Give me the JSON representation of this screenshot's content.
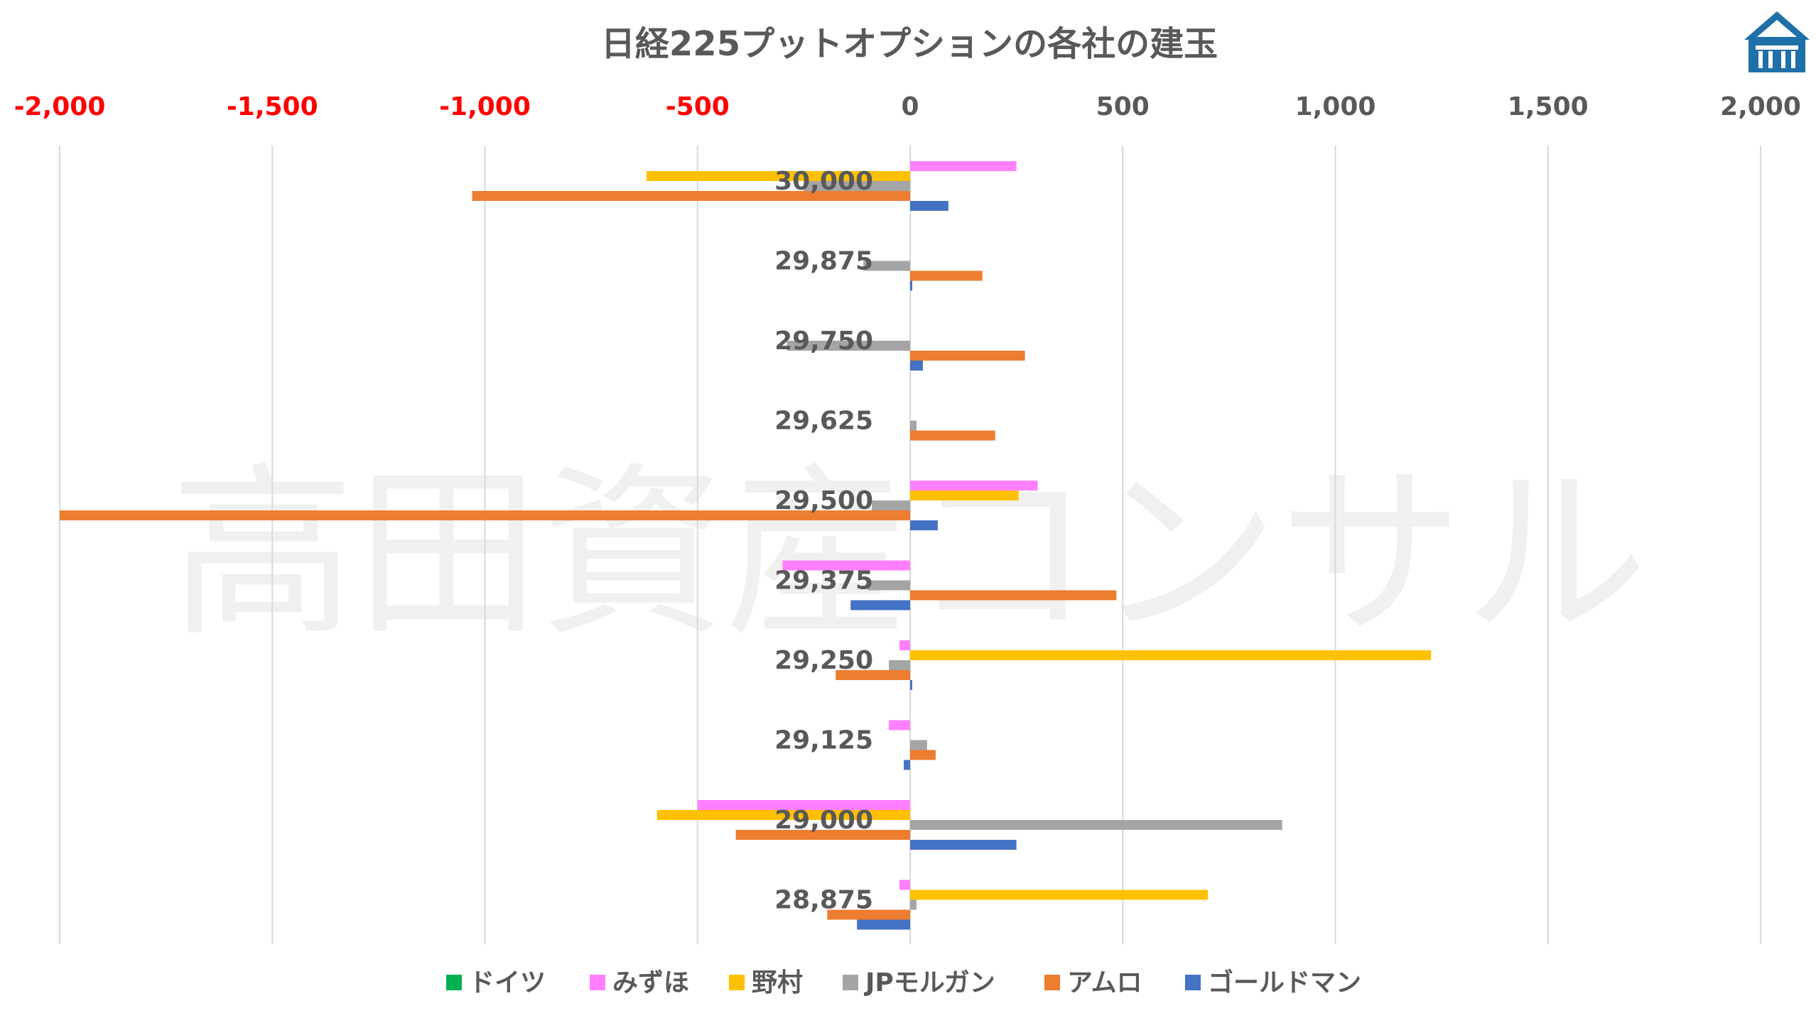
{
  "chart_data": {
    "type": "bar",
    "orientation": "horizontal",
    "title": "日経225プットオプションの各社の建玉",
    "xlim": [
      -2000,
      2000
    ],
    "x_ticks": [
      -2000,
      -1500,
      -1000,
      -500,
      0,
      500,
      1000,
      1500,
      2000
    ],
    "x_tick_labels": [
      "-2,000",
      "-1,500",
      "-1,000",
      "-500",
      "0",
      "500",
      "1,000",
      "1,500",
      "2,000"
    ],
    "negative_tick_color": "#FF0000",
    "positive_tick_color": "#595959",
    "grid": true,
    "legend_position": "bottom",
    "categories": [
      "30,000",
      "29,875",
      "29,750",
      "29,625",
      "29,500",
      "29,375",
      "29,250",
      "29,125",
      "29,000",
      "28,875"
    ],
    "series": [
      {
        "name": "ドイツ",
        "color": "#00B050",
        "values": [
          0,
          0,
          0,
          0,
          0,
          0,
          0,
          0,
          0,
          0
        ]
      },
      {
        "name": "みずほ",
        "color": "#FF80FF",
        "values": [
          250,
          0,
          0,
          0,
          300,
          -300,
          -25,
          -50,
          -500,
          -25
        ]
      },
      {
        "name": "野村",
        "color": "#FFC000",
        "values": [
          -620,
          0,
          0,
          0,
          255,
          0,
          1225,
          0,
          -595,
          700
        ]
      },
      {
        "name": "JPモルガン",
        "color": "#A5A5A5",
        "values": [
          -250,
          -110,
          -290,
          15,
          -90,
          -100,
          -50,
          40,
          875,
          15
        ]
      },
      {
        "name": "アムロ",
        "color": "#ED7D31",
        "values": [
          -1030,
          170,
          270,
          200,
          -2000,
          485,
          -175,
          60,
          -410,
          -195
        ]
      },
      {
        "name": "ゴールドマン",
        "color": "#4472C4",
        "values": [
          90,
          5,
          30,
          0,
          65,
          -140,
          5,
          -15,
          250,
          -125
        ]
      }
    ],
    "watermark": "高田資産コンサル",
    "logo_icon": "takada-logo-icon"
  }
}
